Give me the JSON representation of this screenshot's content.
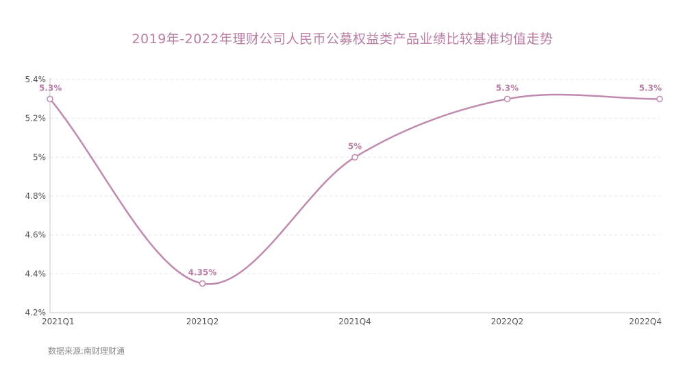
{
  "title": "2019年-2022年理财公司人民币公募权益类产品业绩比较基准均值走势",
  "source": "数据来源:南财理财通",
  "colors": {
    "title": "#b97ea3",
    "line": "#c089ae",
    "label": "#b97ea3"
  },
  "chart_data": {
    "type": "line",
    "title": "2019年-2022年理财公司人民币公募权益类产品业绩比较基准均值走势",
    "xlabel": "",
    "ylabel": "",
    "categories": [
      "2021Q1",
      "2021Q2",
      "2021Q4",
      "2022Q2",
      "2022Q4"
    ],
    "series": [
      {
        "values": [
          5.3,
          4.35,
          5.0,
          5.3,
          5.3
        ]
      }
    ],
    "data_labels": [
      "5.3%",
      "4.35%",
      "5%",
      "5.3%",
      "5.3%"
    ],
    "yticks": [
      {
        "value": 4.2,
        "label": "4.2%"
      },
      {
        "value": 4.4,
        "label": "4.4%"
      },
      {
        "value": 4.6,
        "label": "4.6%"
      },
      {
        "value": 4.8,
        "label": "4.8%"
      },
      {
        "value": 5.0,
        "label": "5%"
      },
      {
        "value": 5.2,
        "label": "5.2%"
      },
      {
        "value": 5.4,
        "label": "5.4%"
      }
    ],
    "ylim": [
      4.2,
      5.4
    ],
    "smooth": true,
    "grid": "horizontal-dashed",
    "legend": "none"
  }
}
